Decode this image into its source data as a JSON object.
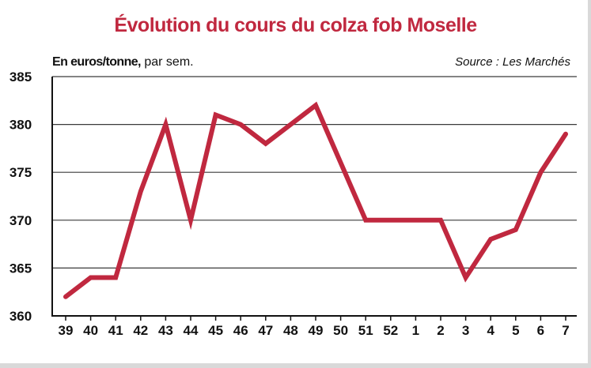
{
  "chart_data": {
    "type": "line",
    "title": "Évolution du cours du colza fob Moselle",
    "unit_label_bold": "En euros/tonne,",
    "unit_label_rest": " par sem.",
    "source": "Source : Les Marchés",
    "categories": [
      "39",
      "40",
      "41",
      "42",
      "43",
      "44",
      "45",
      "46",
      "47",
      "48",
      "49",
      "50",
      "51",
      "52",
      "1",
      "2",
      "3",
      "4",
      "5",
      "6",
      "7"
    ],
    "series": [
      {
        "values": [
          362,
          364,
          364,
          373,
          380,
          370,
          381,
          380,
          378,
          380,
          382,
          376,
          370,
          370,
          370,
          370,
          364,
          368,
          369,
          375,
          379
        ]
      }
    ],
    "ylim": [
      360,
      385
    ],
    "yticks": [
      360,
      365,
      370,
      375,
      380,
      385
    ],
    "grid": true,
    "line_color": "#c0283f"
  }
}
